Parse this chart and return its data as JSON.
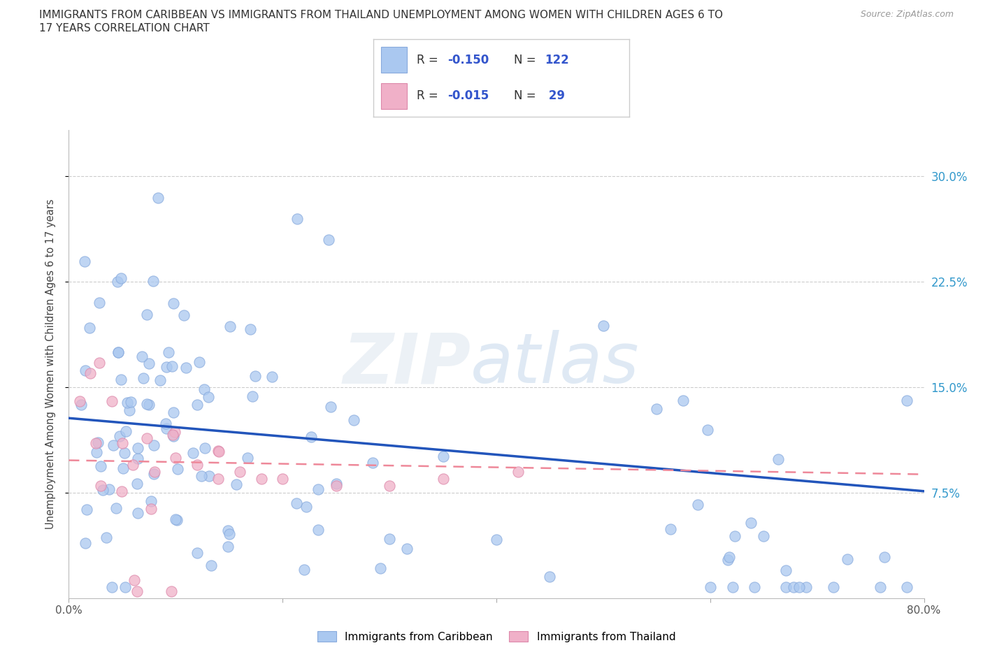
{
  "title_line1": "IMMIGRANTS FROM CARIBBEAN VS IMMIGRANTS FROM THAILAND UNEMPLOYMENT AMONG WOMEN WITH CHILDREN AGES 6 TO",
  "title_line2": "17 YEARS CORRELATION CHART",
  "source": "Source: ZipAtlas.com",
  "ylabel": "Unemployment Among Women with Children Ages 6 to 17 years",
  "xlim": [
    0,
    0.8
  ],
  "ylim": [
    0,
    0.333
  ],
  "yticks": [
    0.075,
    0.15,
    0.225,
    0.3
  ],
  "ytick_labels": [
    "7.5%",
    "15.0%",
    "22.5%",
    "30.0%"
  ],
  "legend_labels": [
    "Immigrants from Caribbean",
    "Immigrants from Thailand"
  ],
  "caribbean_color": "#aac8f0",
  "caribbean_edge": "#88aadd",
  "thailand_color": "#f0b0c8",
  "thailand_edge": "#dd88aa",
  "caribbean_line_color": "#2255bb",
  "thailand_line_color": "#ee8899",
  "R_caribbean": -0.15,
  "N_caribbean": 122,
  "R_thailand": -0.015,
  "N_thailand": 29,
  "carib_trend_x0": 0.0,
  "carib_trend_y0": 0.128,
  "carib_trend_x1": 0.8,
  "carib_trend_y1": 0.076,
  "thai_trend_x0": 0.0,
  "thai_trend_y0": 0.098,
  "thai_trend_x1": 0.8,
  "thai_trend_y1": 0.088
}
